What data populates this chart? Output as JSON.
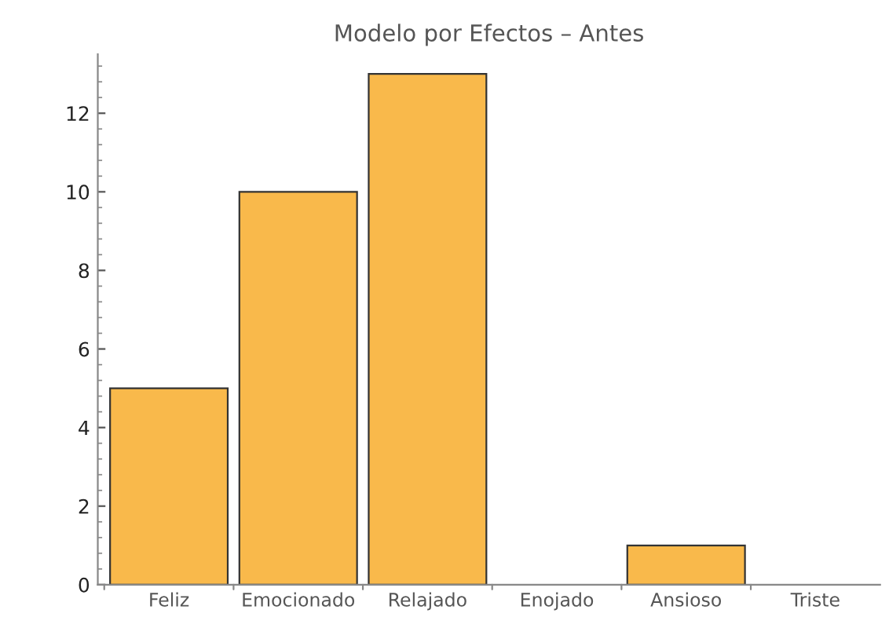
{
  "chart_data": {
    "type": "bar",
    "title": "Modelo por Efectos – Antes",
    "categories": [
      "Feliz",
      "Emocionado",
      "Relajado",
      "Enojado",
      "Ansioso",
      "Triste"
    ],
    "values": [
      5,
      10,
      13,
      0,
      1,
      0
    ],
    "color": "#f9b94b",
    "ylim": [
      0,
      13.5
    ],
    "yticks": [
      0,
      2,
      4,
      6,
      8,
      10,
      12
    ],
    "grid": false,
    "legend": false
  }
}
